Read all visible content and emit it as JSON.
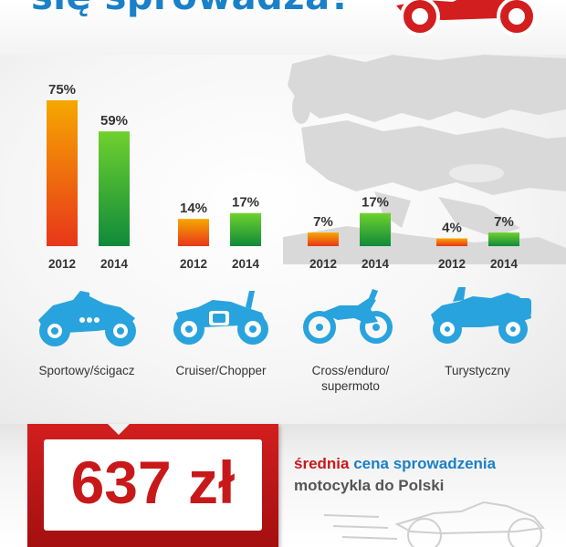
{
  "header": {
    "title": "się sprowadza?"
  },
  "chart_data": {
    "type": "bar",
    "categories": [
      "Sportowy/ścigacz",
      "Cruiser/Chopper",
      "Cross/enduro/ supermoto",
      "Turystyczny"
    ],
    "series": [
      {
        "name": "2012",
        "values": [
          75,
          14,
          7,
          4
        ],
        "labels": [
          "75%",
          "14%",
          "7%",
          "4%"
        ]
      },
      {
        "name": "2014",
        "values": [
          59,
          17,
          17,
          7
        ],
        "labels": [
          "59%",
          "17%",
          "17%",
          "7%"
        ]
      }
    ],
    "ylim": [
      0,
      75
    ],
    "grid": false,
    "colors": {
      "2012": [
        "#f6a800",
        "#e8361a"
      ],
      "2014": [
        "#6fd12e",
        "#0f8a3a"
      ]
    }
  },
  "categories": [
    {
      "icon": "sport-motorcycle-icon",
      "label_lines": [
        "Sportowy/ścigacz"
      ]
    },
    {
      "icon": "cruiser-motorcycle-icon",
      "label_lines": [
        "Cruiser/Chopper"
      ]
    },
    {
      "icon": "cross-motorcycle-icon",
      "label_lines": [
        "Cross/enduro/",
        "supermoto"
      ]
    },
    {
      "icon": "touring-motorcycle-icon",
      "label_lines": [
        "Turystyczny"
      ]
    }
  ],
  "price": {
    "value": "637 zł",
    "desc_red": "średnia",
    "desc_blue": "cena sprowadzenia",
    "desc_dark": "motocykla do Polski"
  },
  "colors": {
    "accent_blue": "#1a80c7",
    "accent_red": "#c8191a",
    "icon_blue": "#29a3dd"
  }
}
